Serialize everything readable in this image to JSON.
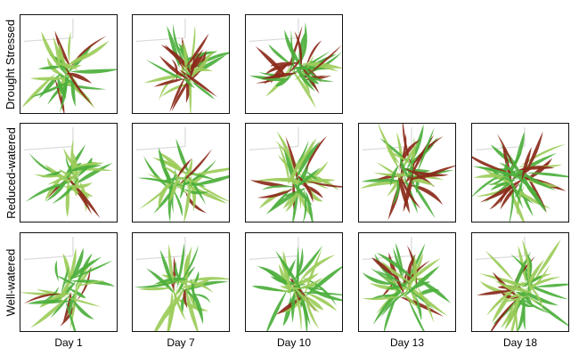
{
  "figure": {
    "rows": [
      {
        "label": "Drought Stressed",
        "panels": [
          0,
          1,
          2
        ]
      },
      {
        "label": "Reduced-watered",
        "panels": [
          0,
          1,
          2,
          3,
          4
        ]
      },
      {
        "label": "Well-watered",
        "panels": [
          0,
          1,
          2,
          3,
          4
        ]
      }
    ],
    "columns": [
      "Day 1",
      "Day 7",
      "Day 10",
      "Day 13",
      "Day 18"
    ],
    "colors": {
      "leaf_green": "#4caf3c",
      "leaf_light": "#9ccc5a",
      "leaf_red": "#8b2a1a",
      "frame": "#111111",
      "tray": "#d8d8d8"
    }
  }
}
